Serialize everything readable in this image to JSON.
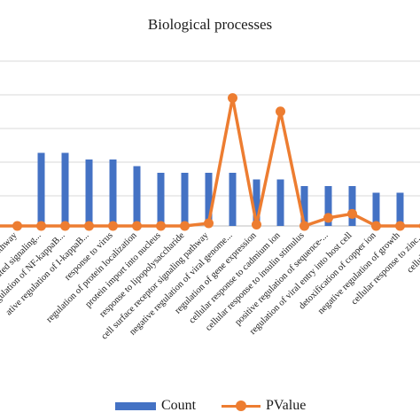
{
  "chart_data": {
    "type": "bar+line",
    "title": "Biological processes",
    "categories": [
      "pathway",
      "ated signaling...",
      "itive regulation of NF-kappaB...",
      "ative regulation of I-kappaB...",
      "response to virus",
      "regulation of protein localization",
      "protein import into nucleus",
      "response to lipopolysaccharide",
      "cell surface receptor signaling pathway",
      "negative regulation of viral genome...",
      "regulation of gene expression",
      "cellular response to cadmium ion",
      "cellular response to insulin stimulus",
      "positive regulation of sequence-...",
      "regulation of viral entry into host cell",
      "detoxification of copper ion",
      "negative regulation of growth",
      "cellular response to zinc...",
      "cellular zinc..."
    ],
    "series": [
      {
        "name": "Count",
        "kind": "bar",
        "color": "#4472C4",
        "values": [
          null,
          11,
          11,
          10,
          10,
          9,
          8,
          8,
          8,
          8,
          7,
          7,
          6,
          6,
          6,
          5,
          5,
          5,
          5
        ]
      },
      {
        "name": "PValue",
        "kind": "line",
        "color": "#ED7D31",
        "values": [
          0,
          0,
          0,
          0,
          0,
          0,
          0,
          0,
          0.4,
          19,
          0.2,
          17,
          0,
          1.2,
          1.8,
          0,
          0,
          0,
          0
        ]
      }
    ],
    "ylim": [
      0,
      20
    ],
    "grid": true,
    "legend_position": "bottom"
  },
  "legend": {
    "count_label": "Count",
    "pvalue_label": "PValue"
  }
}
